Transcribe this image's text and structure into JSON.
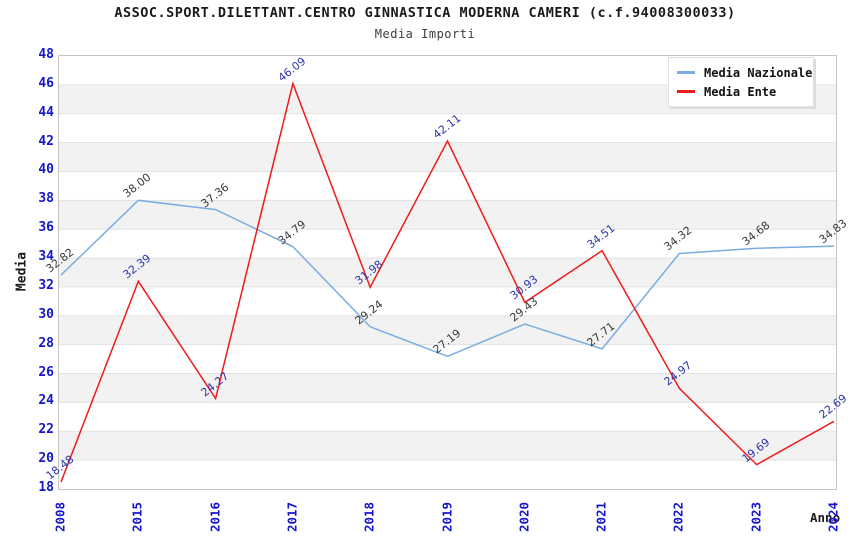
{
  "chart_data": {
    "type": "line",
    "title": "ASSOC.SPORT.DILETTANT.CENTRO GINNASTICA MODERNA CAMERI (c.f.94008300033)",
    "subtitle": "Media Importi",
    "xlabel": "Anno",
    "ylabel": "Media",
    "categories": [
      "2008",
      "2015",
      "2016",
      "2017",
      "2018",
      "2019",
      "2020",
      "2021",
      "2022",
      "2023",
      "2024"
    ],
    "y_ticks": [
      18,
      20,
      22,
      24,
      26,
      28,
      30,
      32,
      34,
      36,
      38,
      40,
      42,
      44,
      46,
      48
    ],
    "ylim": [
      18,
      48
    ],
    "grid": "horizontal gridlines with alternating white/grey bands",
    "legend_position": "top-right inset",
    "series": [
      {
        "name": "Media Nazionale",
        "color": "#7badе0",
        "values": [
          32.82,
          38.0,
          37.36,
          34.79,
          29.24,
          27.19,
          29.43,
          27.71,
          34.32,
          34.68,
          34.83
        ]
      },
      {
        "name": "Media Ente",
        "color": "#ee1c1c",
        "values": [
          18.48,
          32.39,
          24.27,
          46.09,
          31.98,
          42.11,
          30.93,
          34.51,
          24.97,
          19.69,
          22.69
        ]
      }
    ],
    "colors": {
      "series_nazionale_line": "#7bade0",
      "series_ente_line": "#ee1c1c",
      "label_nazionale_text": "#3a3a3a",
      "label_ente_text": "#2b35a8",
      "axis_tick_text": "#1515cd",
      "band_fill": "#f2f2f2",
      "gridline": "#e2e2e2",
      "plot_border": "#c4c4c4"
    }
  }
}
